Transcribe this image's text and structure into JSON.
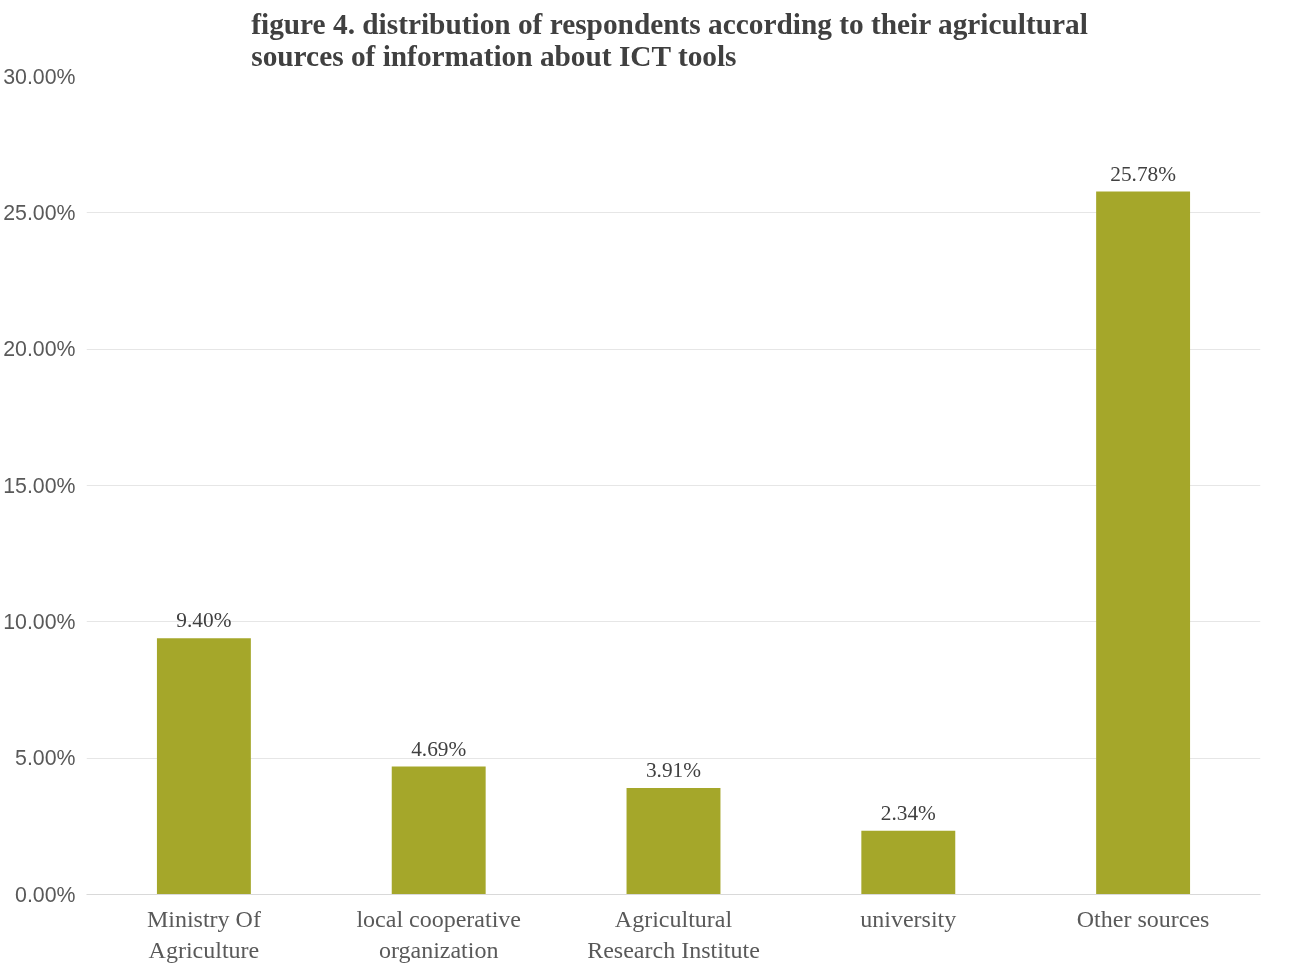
{
  "chart_data": {
    "type": "bar",
    "title": "figure 4.  distribution of respondents according to their agricultural sources of information about ICT tools",
    "categories": [
      "Ministry Of Agriculture",
      "local cooperative organization",
      "Agricultural Research Institute",
      "university",
      "Other sources"
    ],
    "values": [
      9.4,
      4.69,
      3.91,
      2.34,
      25.78
    ],
    "value_labels": [
      "9.40%",
      "4.69%",
      "3.91%",
      "2.34%",
      "25.78%"
    ],
    "color": "#a5a72a",
    "ylim": [
      0,
      30
    ],
    "yticks": [
      {
        "value": 0,
        "label": "0.00%"
      },
      {
        "value": 5,
        "label": "5.00%"
      },
      {
        "value": 10,
        "label": "10.00%"
      },
      {
        "value": 15,
        "label": "15.00%"
      },
      {
        "value": 20,
        "label": "20.00%"
      },
      {
        "value": 25,
        "label": "25.00%"
      },
      {
        "value": 30,
        "label": "30.00%"
      }
    ],
    "grid": "y"
  }
}
